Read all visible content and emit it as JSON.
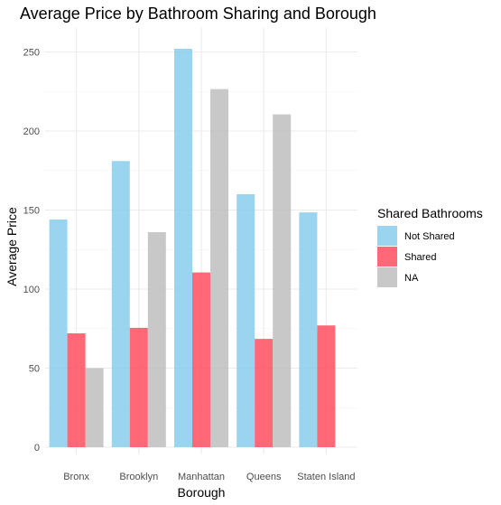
{
  "chart_data": {
    "type": "bar",
    "title": "Average Price by Bathroom Sharing and Borough",
    "xlabel": "Borough",
    "ylabel": "Average Price",
    "categories": [
      "Bronx",
      "Brooklyn",
      "Manhattan",
      "Queens",
      "Staten Island"
    ],
    "series": [
      {
        "name": "Not Shared",
        "color": "#87CEEB",
        "values": [
          144,
          181,
          252,
          160,
          148.5
        ]
      },
      {
        "name": "Shared",
        "color": "#FF4D5E",
        "values": [
          72,
          75.5,
          110.5,
          68.5,
          77
        ]
      },
      {
        "name": "NA",
        "color": "#BEBEBE",
        "values": [
          50,
          136,
          226.5,
          210.5,
          null
        ]
      }
    ],
    "ylim": [
      0,
      265
    ],
    "yticks": [
      0,
      50,
      100,
      150,
      200,
      250
    ],
    "grid": true,
    "legend": {
      "title": "Shared Bathrooms",
      "position": "right"
    }
  }
}
